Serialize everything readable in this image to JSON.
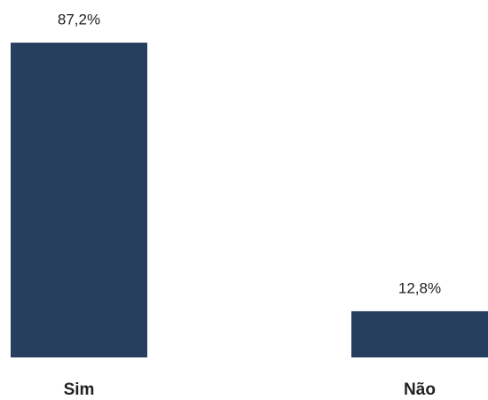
{
  "chart_data": {
    "type": "bar",
    "categories": [
      "Sim",
      "Não"
    ],
    "values": [
      87.2,
      12.8
    ],
    "value_labels": [
      "87,2%",
      "12,8%"
    ],
    "color": "#263f5f"
  }
}
